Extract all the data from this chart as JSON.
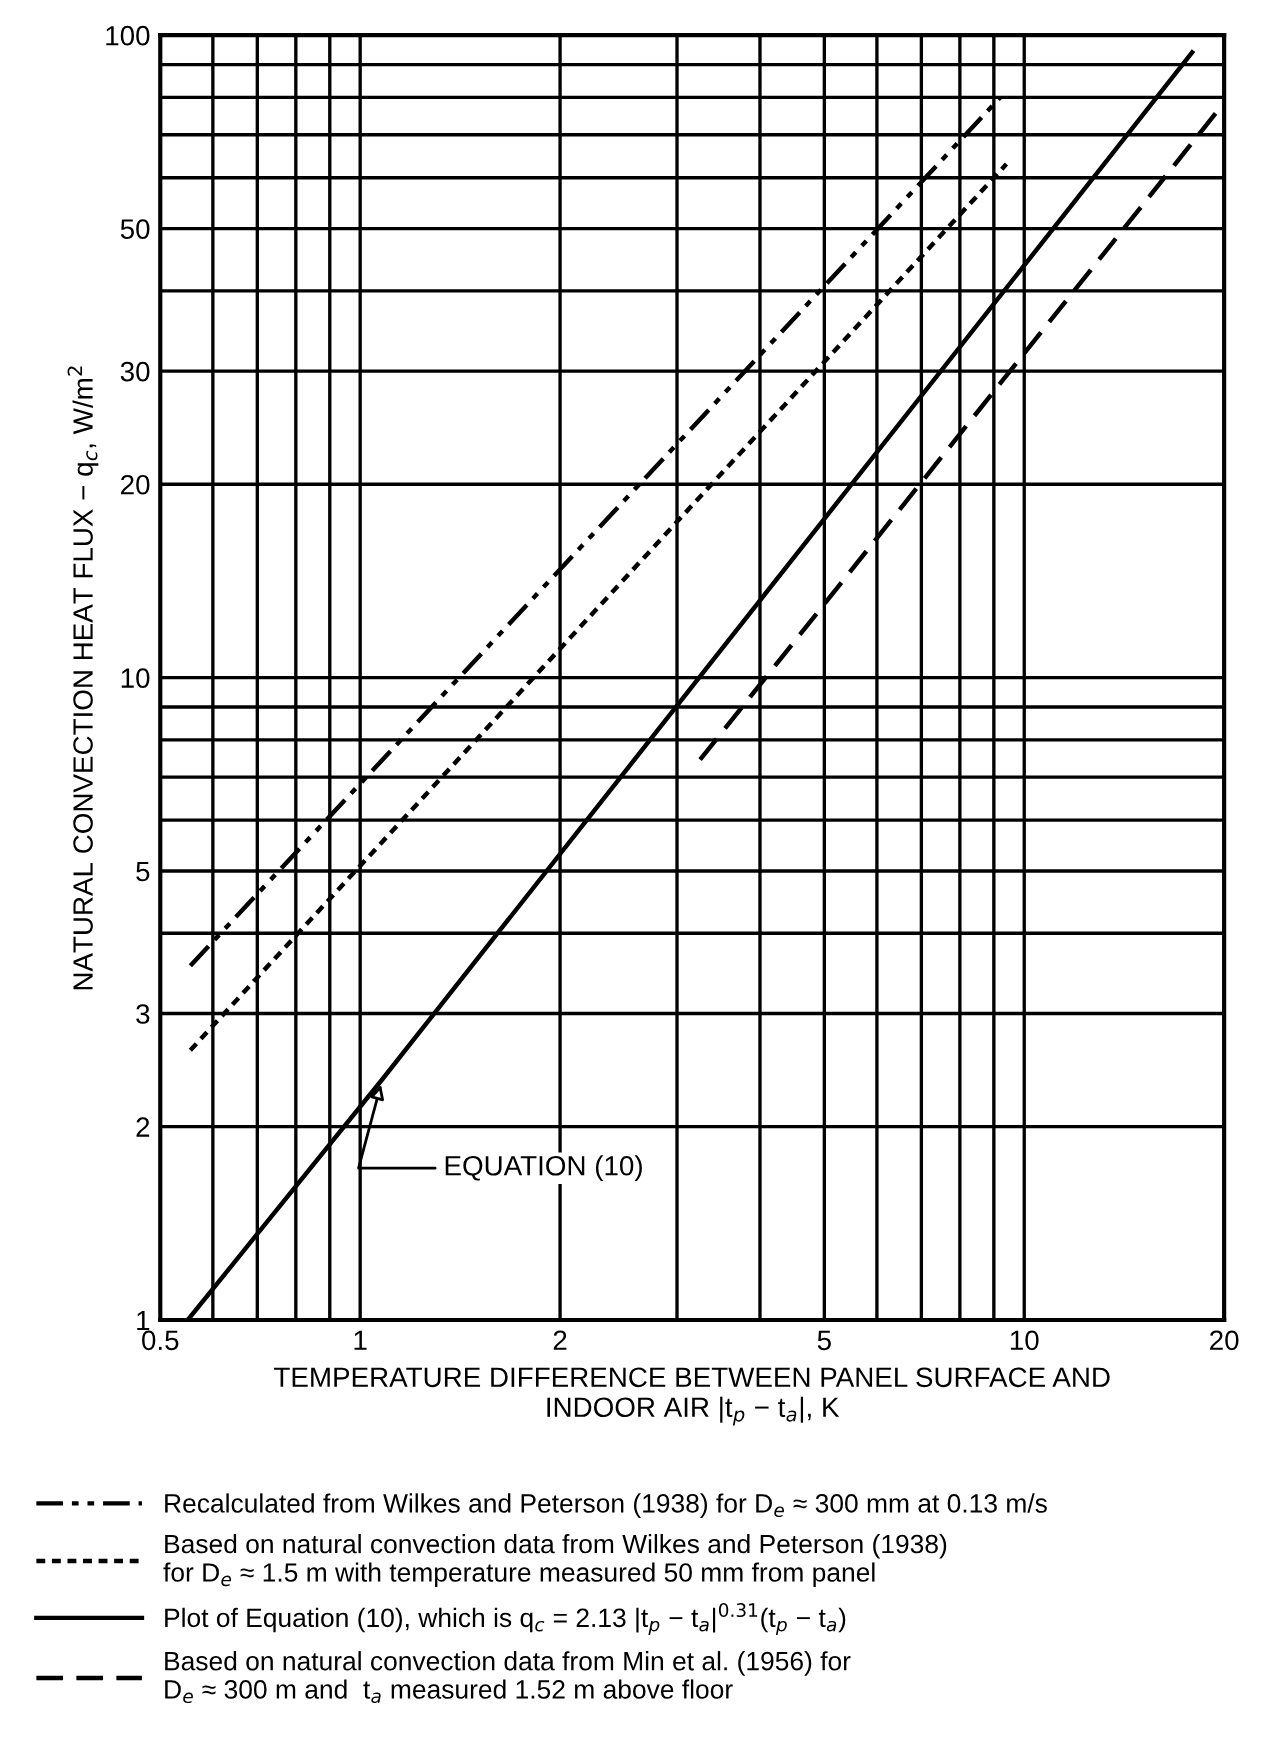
{
  "chart_data": {
    "type": "line",
    "xlabel": "TEMPERATURE DIFFERENCE BETWEEN PANEL SURFACE AND\nINDOOR AIR |t$_{p}$ − t$_{a}$|, K",
    "ylabel": "NATURAL CONVECTION HEAT FLUX − q$_{c}$, W/m$^{2}$",
    "log": "xy",
    "grid": true,
    "legend": "bottom",
    "xlim": [
      0.5,
      20
    ],
    "ylim": [
      1,
      100
    ],
    "xticks": [
      0.5,
      {
        "value": 0.6,
        "label": null
      },
      {
        "value": 0.7,
        "label": null
      },
      {
        "value": 0.8,
        "label": null
      },
      {
        "value": 0.9,
        "label": null
      },
      1,
      2,
      {
        "value": 3,
        "label": null
      },
      {
        "value": 4,
        "label": null
      },
      5,
      {
        "value": 6,
        "label": null
      },
      {
        "value": 7,
        "label": null
      },
      {
        "value": 8,
        "label": null
      },
      {
        "value": 9,
        "label": null
      },
      10,
      20
    ],
    "yticks": [
      1,
      2,
      3,
      {
        "value": 4,
        "label": null
      },
      5,
      {
        "value": 6,
        "label": null
      },
      {
        "value": 7,
        "label": null
      },
      {
        "value": 8,
        "label": null
      },
      {
        "value": 9,
        "label": null
      },
      10,
      20,
      30,
      {
        "value": 40,
        "label": null
      },
      50,
      {
        "value": 60,
        "label": null
      },
      {
        "value": 70,
        "label": null
      },
      {
        "value": 80,
        "label": null
      },
      {
        "value": 90,
        "label": null
      },
      100
    ],
    "series": [
      {
        "name": "Recalculated from Wilkes and Peterson (1938) for D$_{e}$ ≈ 300 mm at 0.13 m/s",
        "color": "#000000",
        "line_style": "dashdot",
        "x": [
          0.555,
          9.2
        ],
        "values": [
          3.56,
          80
        ]
      },
      {
        "name": "Based on natural convection data from Wilkes and Peterson (1938)\nfor D$_{e}$ ≈ 1.5 m with temperature measured 50 mm from panel",
        "color": "#000000",
        "line_style": "dotted",
        "x": [
          0.555,
          9.4
        ],
        "values": [
          2.63,
          63
        ]
      },
      {
        "name": "Plot of Equation (10), which is q$_{c}$ = 2.13 |t$_{p}$ − t$_{a}$|$^{0.31}$(t$_{p}$ − t$_{a}$)",
        "color": "#000000",
        "line_style": "solid",
        "x": [
          0.55,
          1.08,
          17.9
        ],
        "values": [
          1,
          2.37,
          94
        ]
      },
      {
        "name": "Based on natural convection data from Min et al. (1956) for\nD$_{e}$ ≈ 300 m and  t$_{a}$ measured 1.52 m above floor",
        "color": "#000000",
        "line_style": "dashed",
        "x": [
          3.25,
          19.9
        ],
        "values": [
          7.45,
          78
        ]
      }
    ],
    "annotations": [
      {
        "text": "EQUATION (10)",
        "x": 1.08,
        "y": 2.37
      }
    ]
  }
}
